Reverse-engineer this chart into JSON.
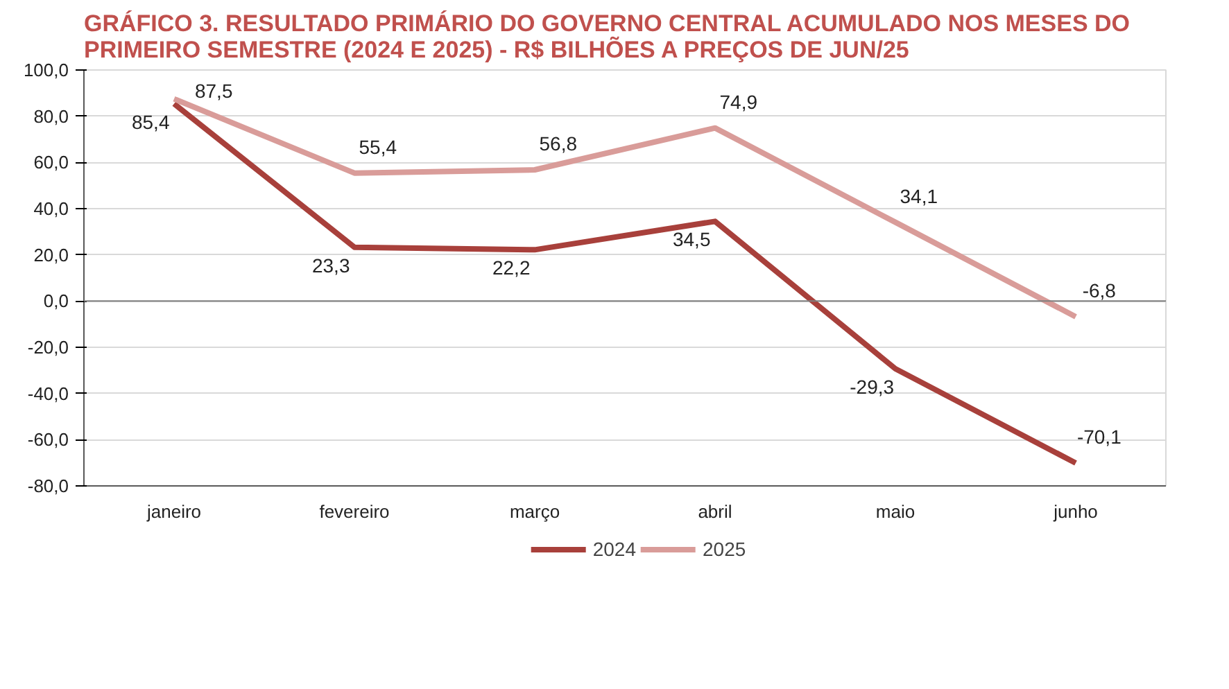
{
  "chart_data": {
    "type": "line",
    "title": "GRÁFICO 3. RESULTADO PRIMÁRIO DO GOVERNO CENTRAL ACUMULADO NOS MESES DO PRIMEIRO SEMESTRE (2024 E 2025) - R$ BILHÕES A PREÇOS DE JUN/25",
    "categories": [
      "janeiro",
      "fevereiro",
      "março",
      "abril",
      "maio",
      "junho"
    ],
    "series": [
      {
        "name": "2024",
        "color": "#a8403b",
        "values": [
          85.4,
          23.3,
          22.2,
          34.5,
          -29.3,
          -70.1
        ],
        "value_labels": [
          "85,4",
          "23,3",
          "22,2",
          "34,5",
          "-29,3",
          "-70,1"
        ]
      },
      {
        "name": "2025",
        "color": "#d99c99",
        "values": [
          87.5,
          55.4,
          56.8,
          74.9,
          34.1,
          -6.8
        ],
        "value_labels": [
          "87,5",
          "55,4",
          "56,8",
          "74,9",
          "34,1",
          "-6,8"
        ]
      }
    ],
    "ylim": [
      -80,
      100
    ],
    "yticks": [
      {
        "value": -80,
        "label": "-80,0"
      },
      {
        "value": -60,
        "label": "-60,0"
      },
      {
        "value": -40,
        "label": "-40,0"
      },
      {
        "value": -20,
        "label": "-20,0"
      },
      {
        "value": 0,
        "label": "0,0"
      },
      {
        "value": 20,
        "label": "20,0"
      },
      {
        "value": 40,
        "label": "40,0"
      },
      {
        "value": 60,
        "label": "60,0"
      },
      {
        "value": 80,
        "label": "80,0"
      },
      {
        "value": 100,
        "label": "100,0"
      }
    ],
    "grid": "y",
    "legend": "bottom",
    "marker": "none",
    "line_style": "solid"
  }
}
